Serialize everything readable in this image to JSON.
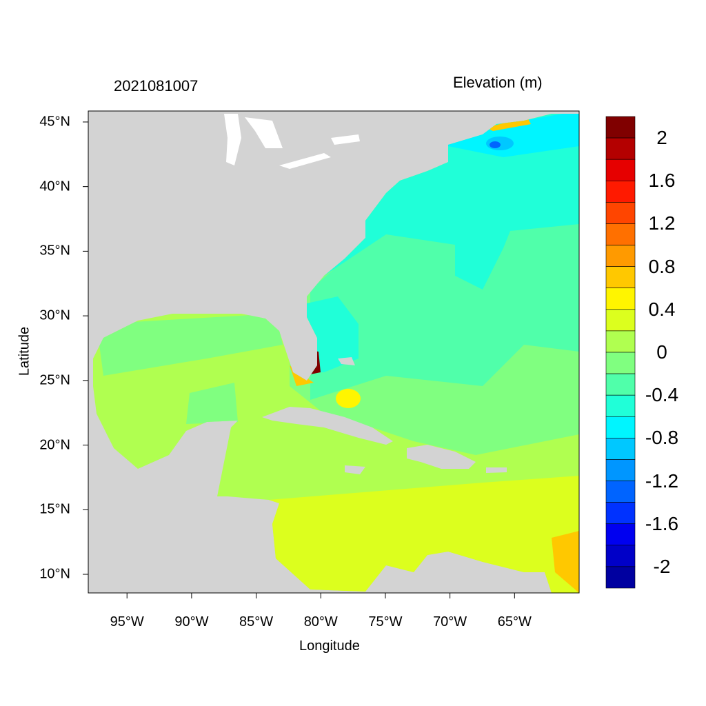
{
  "title": "2021081007",
  "variable": "Elevation (m)",
  "axes": {
    "xlabel": "Longitude",
    "ylabel": "Latitude",
    "lon_range": [
      -98,
      -60
    ],
    "lat_range": [
      8.56,
      45.85
    ],
    "x_ticks": [
      {
        "lon": -95,
        "label": "95°W"
      },
      {
        "lon": -90,
        "label": "90°W"
      },
      {
        "lon": -85,
        "label": "85°W"
      },
      {
        "lon": -80,
        "label": "80°W"
      },
      {
        "lon": -75,
        "label": "75°W"
      },
      {
        "lon": -70,
        "label": "70°W"
      },
      {
        "lon": -65,
        "label": "65°W"
      }
    ],
    "y_ticks": [
      {
        "lat": 45,
        "label": "45°N"
      },
      {
        "lat": 40,
        "label": "40°N"
      },
      {
        "lat": 35,
        "label": "35°N"
      },
      {
        "lat": 30,
        "label": "30°N"
      },
      {
        "lat": 25,
        "label": "25°N"
      },
      {
        "lat": 20,
        "label": "20°N"
      },
      {
        "lat": 15,
        "label": "15°N"
      },
      {
        "lat": 10,
        "label": "10°N"
      }
    ]
  },
  "colorbar": {
    "range": [
      -2.2,
      2.2
    ],
    "colors": [
      "#800000",
      "#b40000",
      "#e60000",
      "#ff1a00",
      "#ff4500",
      "#ff7000",
      "#ff9a00",
      "#ffc800",
      "#fff500",
      "#dcff1e",
      "#b0ff50",
      "#80ff80",
      "#50ffaa",
      "#20ffd8",
      "#00f5ff",
      "#00c8ff",
      "#0096ff",
      "#0064ff",
      "#0032ff",
      "#0000f0",
      "#0000c8",
      "#0000a0"
    ],
    "labels": [
      {
        "value": 2,
        "label": "2"
      },
      {
        "value": 1.6,
        "label": "1.6"
      },
      {
        "value": 1.2,
        "label": "1.2"
      },
      {
        "value": 0.8,
        "label": "0.8"
      },
      {
        "value": 0.4,
        "label": "0.4"
      },
      {
        "value": 0,
        "label": "0"
      },
      {
        "value": -0.4,
        "label": "-0.4"
      },
      {
        "value": -0.8,
        "label": "-0.8"
      },
      {
        "value": -1.2,
        "label": "-1.2"
      },
      {
        "value": -1.6,
        "label": "-1.6"
      },
      {
        "value": -2,
        "label": "-2"
      }
    ]
  },
  "colors": {
    "land": "#d3d3d3",
    "lakes": "#ffffff"
  }
}
